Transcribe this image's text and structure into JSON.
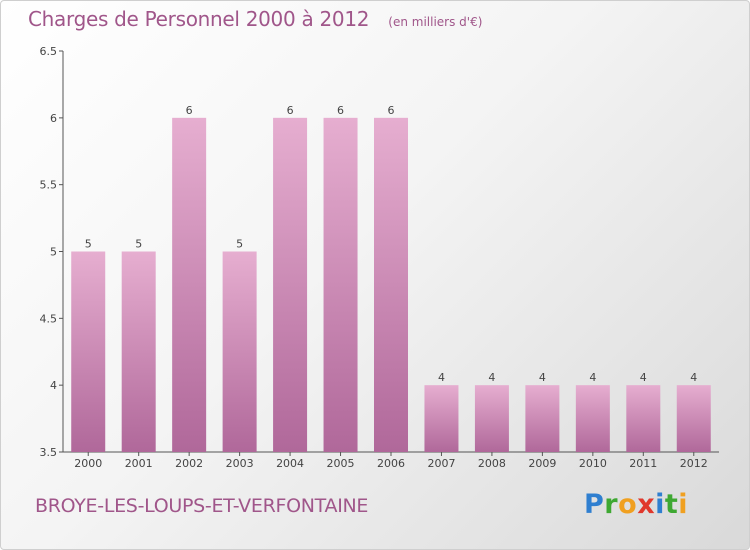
{
  "header": {
    "title": "Charges de Personnel 2000 à 2012",
    "subtitle": "(en milliers d'€)"
  },
  "footer": {
    "commune": "BROYE-LES-LOUPS-ET-VERFONTAINE",
    "brand_letters": [
      "P",
      "r",
      "o",
      "x",
      "i",
      "t",
      "i"
    ],
    "brand_colors": [
      "#2f7fd0",
      "#3ea832",
      "#f0a020",
      "#e0382c",
      "#2f7fd0",
      "#3ea832",
      "#f0a020"
    ]
  },
  "chart_data": {
    "type": "bar",
    "categories": [
      "2000",
      "2001",
      "2002",
      "2003",
      "2004",
      "2005",
      "2006",
      "2007",
      "2008",
      "2009",
      "2010",
      "2011",
      "2012"
    ],
    "values": [
      5,
      5,
      6,
      5,
      6,
      6,
      6,
      4,
      4,
      4,
      4,
      4,
      4
    ],
    "data_labels": [
      "5",
      "5",
      "6",
      "5",
      "6",
      "6",
      "6",
      "4",
      "4",
      "4",
      "4",
      "4",
      "4"
    ],
    "title": "Charges de Personnel 2000 à 2012",
    "subtitle": "(en milliers d'€)",
    "xlabel": "",
    "ylabel": "",
    "ylim": [
      3.5,
      6.5
    ],
    "yticks": [
      "3.5",
      "4",
      "4.5",
      "5",
      "5.5",
      "6",
      "6.5"
    ],
    "grid": false,
    "legend": "none",
    "colors": {
      "bar_light": "#e3a8cc",
      "bar_dark": "#b0689a",
      "text": "#a0568a",
      "axis": "#444444"
    }
  }
}
